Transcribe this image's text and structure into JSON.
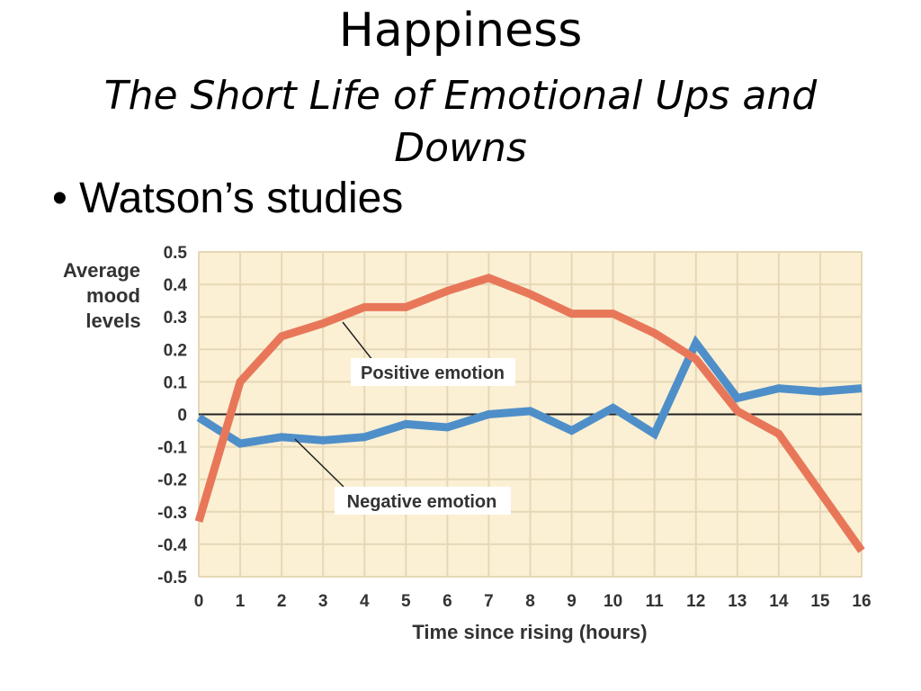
{
  "slide": {
    "title": "Happiness",
    "subtitle": "The Short Life of Emotional Ups and Downs",
    "bullet": "• Watson’s studies"
  },
  "colors": {
    "plot_background": "#fbf0d4",
    "gridline": "#e6d8b6",
    "zero_line": "#222222",
    "positive": "#e8775a",
    "negative": "#4f8fc9"
  },
  "chart_data": {
    "type": "line",
    "ylabel": [
      "Average",
      "mood",
      "levels"
    ],
    "xlabel": "Time since rising (hours)",
    "x": [
      0,
      1,
      2,
      3,
      4,
      5,
      6,
      7,
      8,
      9,
      10,
      11,
      12,
      13,
      14,
      15,
      16
    ],
    "xlim": [
      0,
      16
    ],
    "ylim": [
      -0.5,
      0.5
    ],
    "yticks": [
      "0.5",
      "0.4",
      "0.3",
      "0.2",
      "0.1",
      "0",
      "-0.1",
      "-0.2",
      "-0.3",
      "-0.4",
      "-0.5"
    ],
    "grid": true,
    "series": [
      {
        "name": "Positive emotion",
        "values": [
          -0.33,
          0.1,
          0.24,
          0.28,
          0.33,
          0.33,
          0.38,
          0.42,
          0.37,
          0.31,
          0.31,
          0.25,
          0.17,
          0.01,
          -0.06,
          -0.24,
          -0.42
        ]
      },
      {
        "name": "Negative emotion",
        "values": [
          -0.01,
          -0.09,
          -0.07,
          -0.08,
          -0.07,
          -0.03,
          -0.04,
          0.0,
          0.01,
          -0.05,
          0.02,
          -0.06,
          0.22,
          0.05,
          0.08,
          0.07,
          0.08
        ]
      }
    ]
  }
}
